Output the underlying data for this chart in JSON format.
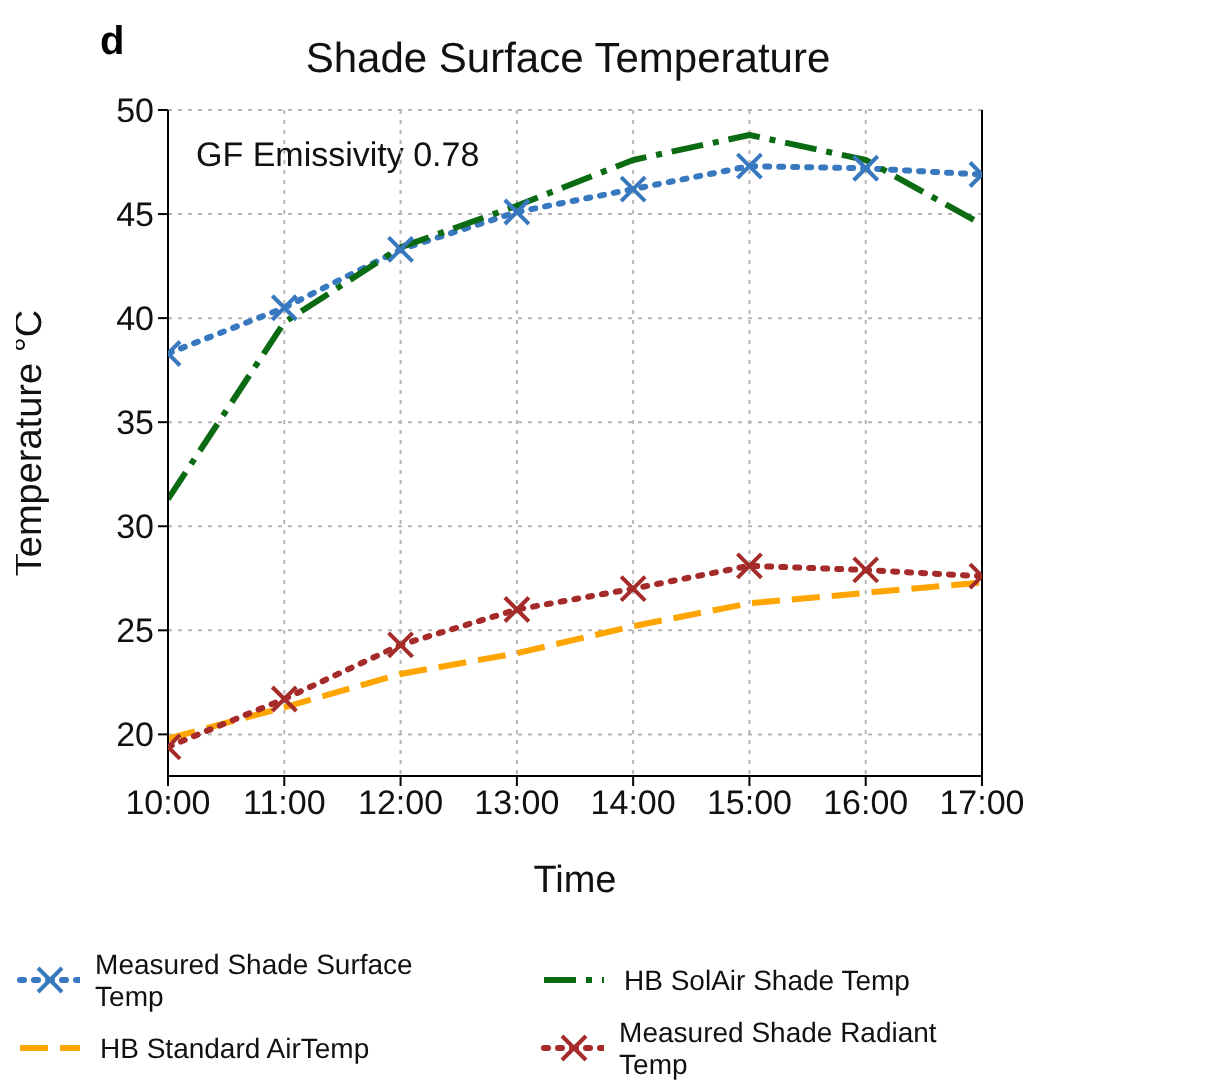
{
  "chart_data": {
    "type": "line",
    "title": "Shade Surface Temperature",
    "xlabel": "Time",
    "ylabel": "Temperature °C",
    "annotations": [
      "d",
      "GF Emissivity 0.78"
    ],
    "x": [
      10,
      11,
      12,
      13,
      14,
      15,
      16,
      17
    ],
    "xlim": [
      10,
      17
    ],
    "xticks": [
      {
        "value": 10,
        "label": "10:00"
      },
      {
        "value": 11,
        "label": "11:00"
      },
      {
        "value": 12,
        "label": "12:00"
      },
      {
        "value": 13,
        "label": "13:00"
      },
      {
        "value": 14,
        "label": "14:00"
      },
      {
        "value": 15,
        "label": "15:00"
      },
      {
        "value": 16,
        "label": "16:00"
      },
      {
        "value": 17,
        "label": "17:00"
      }
    ],
    "ylim": [
      18,
      50
    ],
    "yticks": [
      20,
      25,
      30,
      35,
      40,
      45,
      50
    ],
    "grid": true,
    "legend": "bottom",
    "series": [
      {
        "name": "Measured Shade Surface Temp",
        "color": "#3778bf",
        "line_style": "dotted",
        "marker": "cross",
        "values": [
          38.3,
          40.5,
          43.3,
          45.1,
          46.2,
          47.3,
          47.2,
          46.9
        ]
      },
      {
        "name": "HB Standard AirTemp",
        "color": "#ffa500",
        "line_style": "dashed",
        "marker": "none",
        "values": [
          19.8,
          21.3,
          22.9,
          23.9,
          25.2,
          26.3,
          26.8,
          27.3
        ]
      },
      {
        "name": "HB SolAir Shade Temp",
        "color": "#0b6b12",
        "line_style": "dashdot",
        "marker": "none",
        "values": [
          31.3,
          39.8,
          43.4,
          45.4,
          47.6,
          48.8,
          47.6,
          44.5
        ]
      },
      {
        "name": "Measured Shade Radiant Temp",
        "color": "#a52a2a",
        "line_style": "dotted",
        "marker": "cross",
        "values": [
          19.4,
          21.7,
          24.3,
          26.0,
          27.0,
          28.1,
          27.9,
          27.6
        ]
      }
    ]
  }
}
